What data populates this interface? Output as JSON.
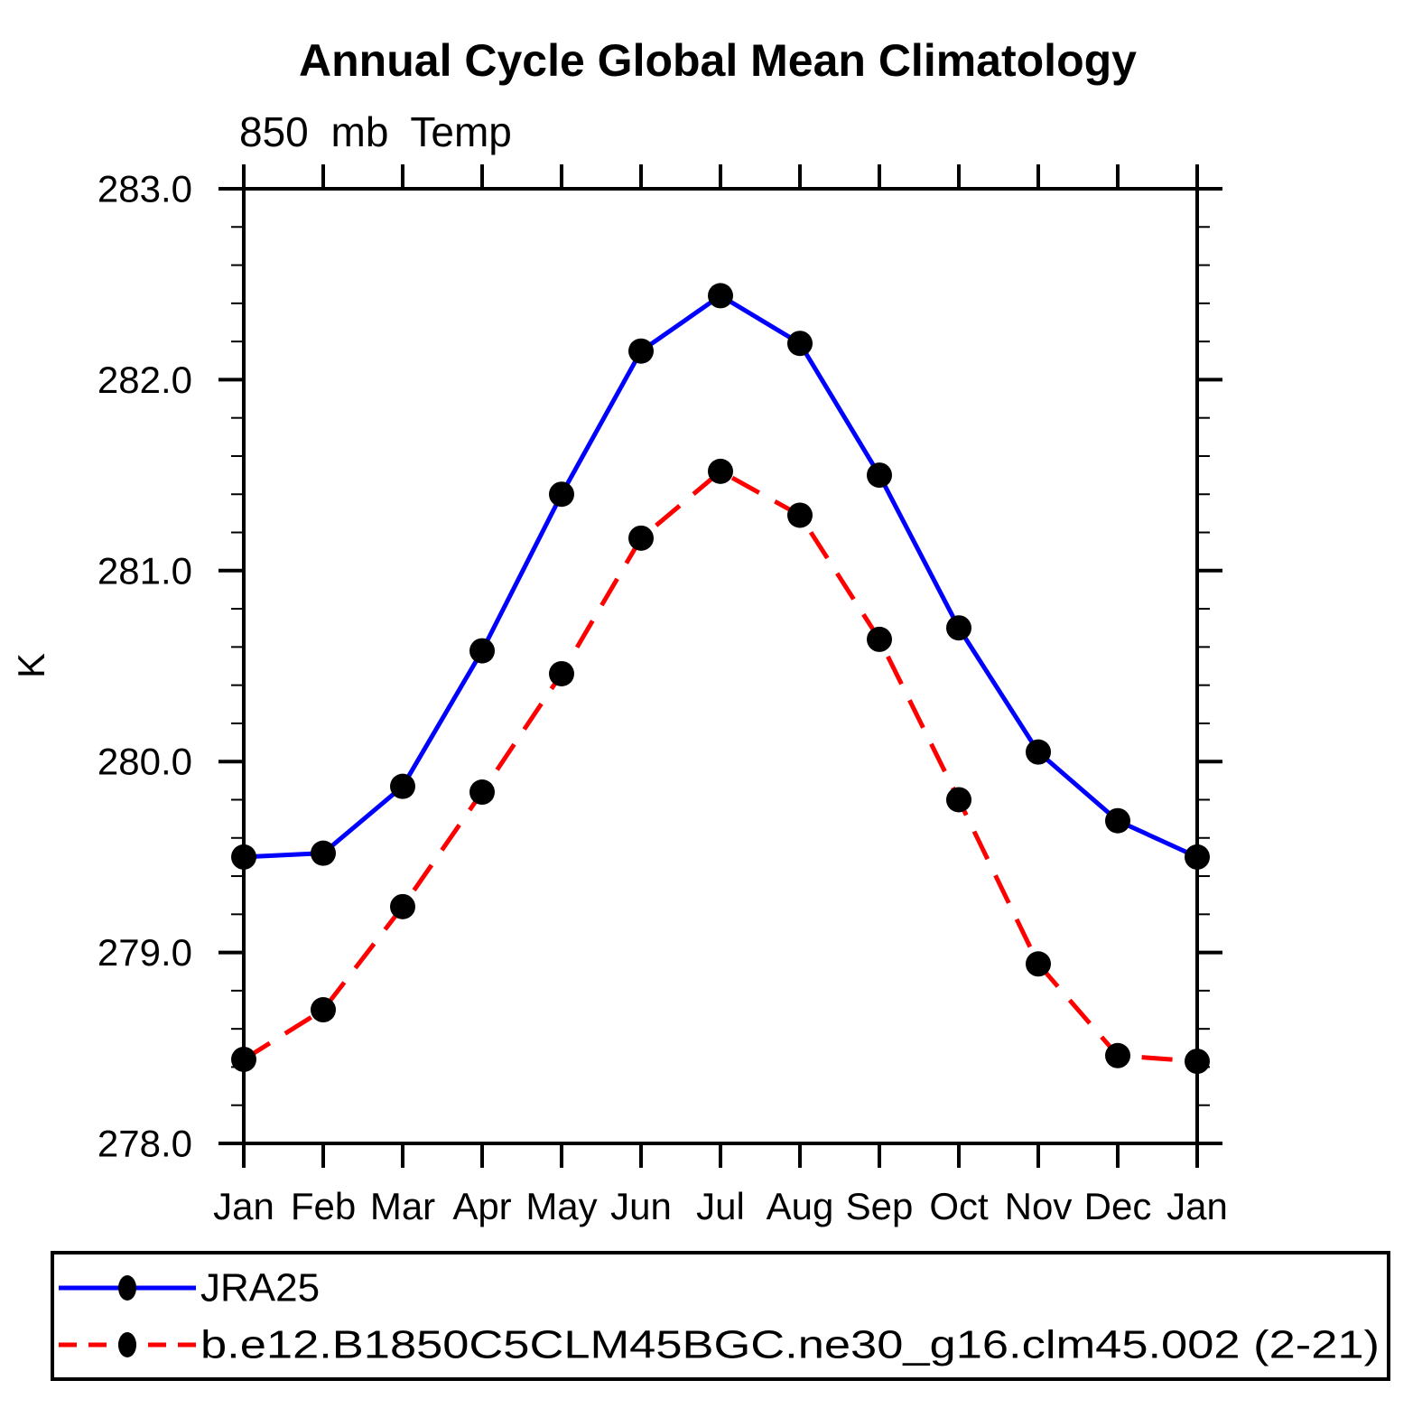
{
  "chart_data": {
    "type": "line",
    "title": "Annual Cycle Global Mean Climatology",
    "subtitle": "850 mb Temp",
    "ylabel": "K",
    "xlabel": "",
    "categories": [
      "Jan",
      "Feb",
      "Mar",
      "Apr",
      "May",
      "Jun",
      "Jul",
      "Aug",
      "Sep",
      "Oct",
      "Nov",
      "Dec",
      "Jan"
    ],
    "ylim": [
      278.0,
      283.0
    ],
    "ytick_major": 1.0,
    "ytick_minor": 0.2,
    "ytick_labels": [
      "278.0",
      "279.0",
      "280.0",
      "281.0",
      "282.0",
      "283.0"
    ],
    "grid": false,
    "legend_position": "bottom",
    "frame_color": "#000000",
    "marker_color": "#000000",
    "series": [
      {
        "name": "JRA25",
        "color": "#0000ff",
        "line_style": "solid",
        "marker": "filled-circle",
        "values": [
          279.5,
          279.52,
          279.87,
          280.58,
          281.4,
          282.15,
          282.44,
          282.19,
          281.5,
          280.7,
          280.05,
          279.69,
          279.5
        ]
      },
      {
        "name": "b.e12.B1850C5CLM45BGC.ne30_g16.clm45.002 (2-21)",
        "color": "#ff0000",
        "line_style": "dashed",
        "marker": "filled-circle",
        "values": [
          278.44,
          278.7,
          279.24,
          279.84,
          280.46,
          281.17,
          281.52,
          281.29,
          280.64,
          279.8,
          278.94,
          278.46,
          278.43
        ]
      }
    ]
  }
}
